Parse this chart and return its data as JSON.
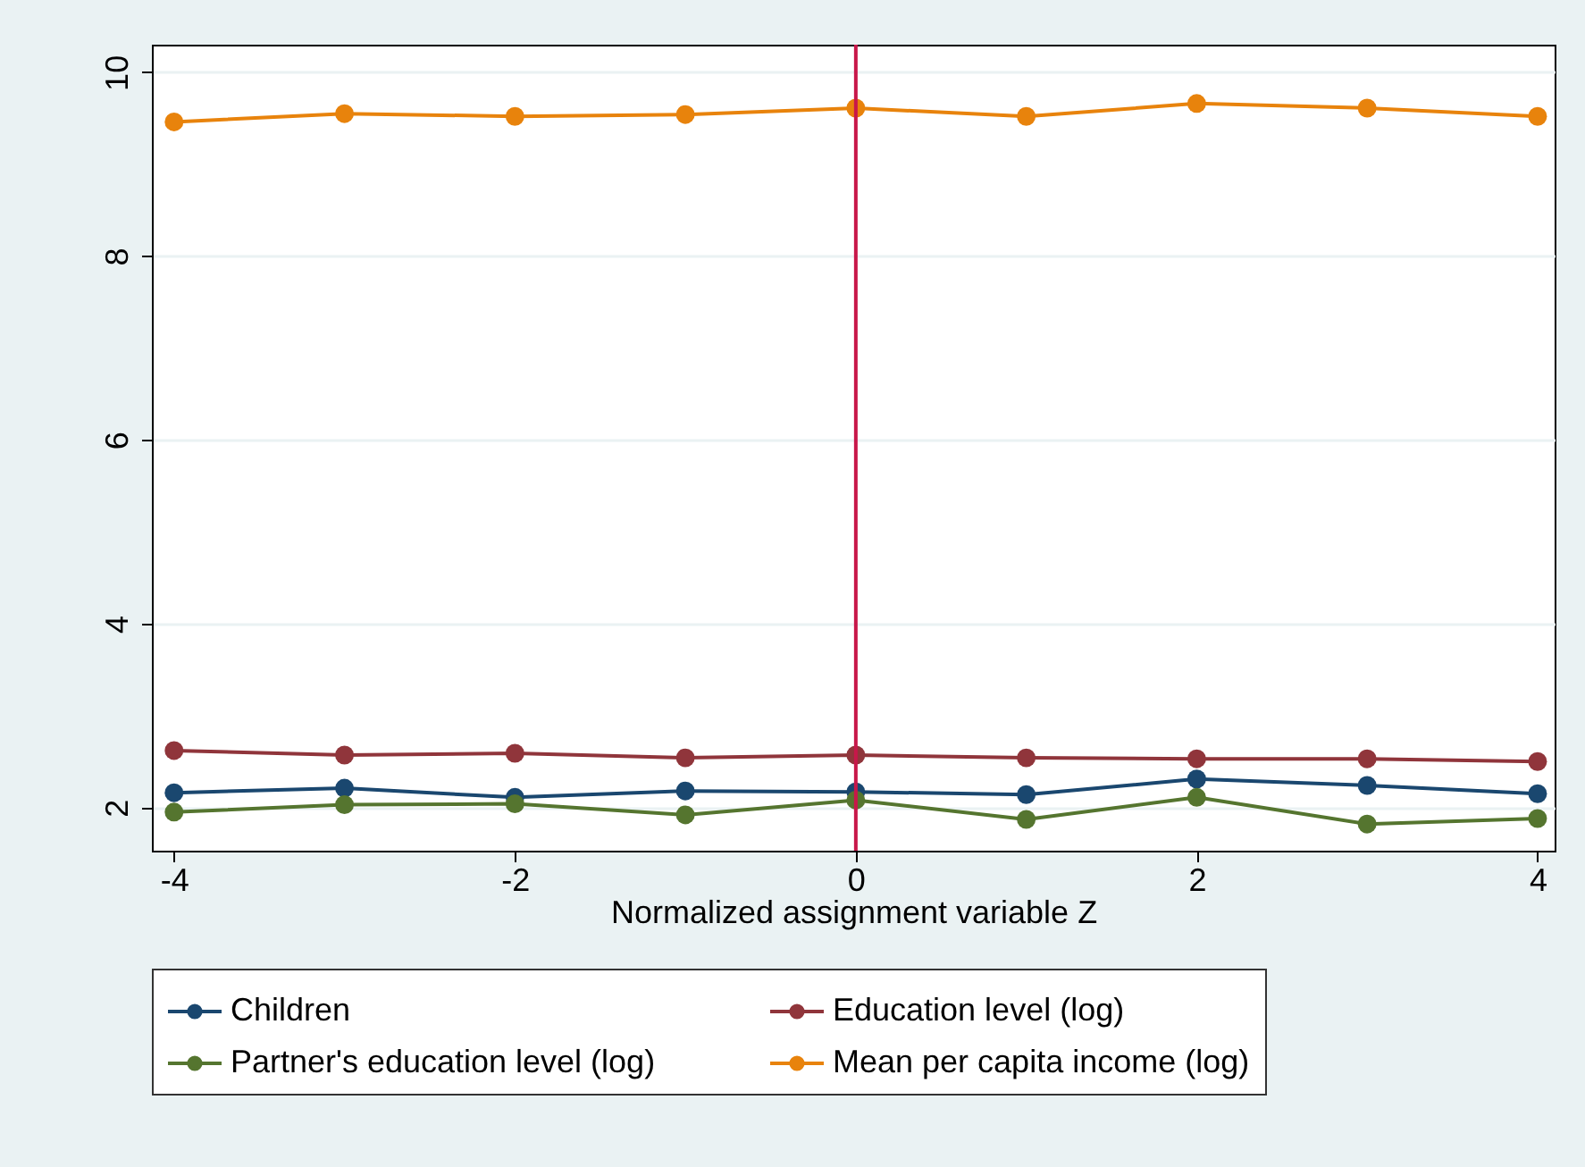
{
  "chart_data": {
    "type": "line",
    "xlabel": "Normalized assignment variable Z",
    "x": [
      -4,
      -3,
      -2,
      -1,
      0,
      1,
      2,
      3,
      4
    ],
    "xlim": [
      -4.13,
      4.1
    ],
    "xticks": [
      -4,
      -2,
      0,
      2,
      4
    ],
    "ylim": [
      1.53,
      10.3
    ],
    "yticks": [
      2,
      4,
      6,
      8,
      10
    ],
    "grid": "y",
    "legend": "bottom",
    "marker": "circle",
    "line_style": "solid",
    "ref_lines": [
      {
        "axis": "x",
        "value": 0,
        "color": "#c8174a"
      }
    ],
    "series": [
      {
        "name": "Children",
        "color": "#1a476f",
        "values": [
          2.16,
          2.21,
          2.11,
          2.18,
          2.17,
          2.14,
          2.31,
          2.24,
          2.15
        ]
      },
      {
        "name": "Education level (log)",
        "color": "#90353b",
        "values": [
          2.62,
          2.57,
          2.59,
          2.54,
          2.57,
          2.54,
          2.53,
          2.53,
          2.5
        ]
      },
      {
        "name": "Partner's education level (log)",
        "color": "#55752f",
        "values": [
          1.95,
          2.03,
          2.04,
          1.92,
          2.08,
          1.87,
          2.11,
          1.82,
          1.88
        ]
      },
      {
        "name": "Mean per capita income (log)",
        "color": "#e8830c",
        "values": [
          9.46,
          9.55,
          9.52,
          9.54,
          9.61,
          9.52,
          9.66,
          9.61,
          9.52
        ]
      }
    ]
  }
}
